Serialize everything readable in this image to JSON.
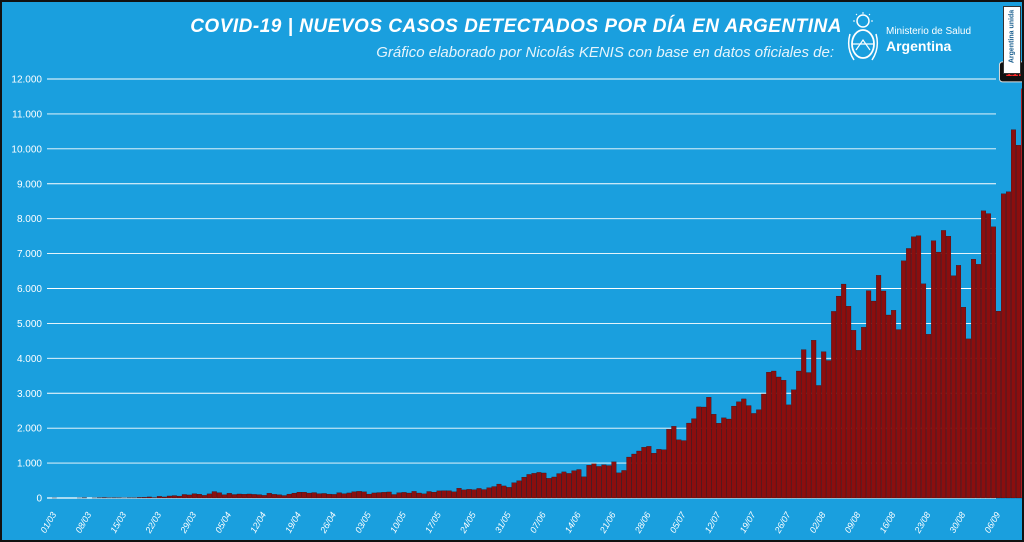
{
  "header": {
    "title": "COVID-19  |  NUEVOS CASOS DETECTADOS POR DÍA EN ARGENTINA",
    "subtitle": "Gráfico elaborado por Nicolás KENIS con base en datos oficiales de:",
    "logo_line1": "Ministerio de Salud",
    "logo_line2": "Argentina",
    "badge": "Argentina unida"
  },
  "colors": {
    "background": "#1a9fde",
    "bar": "#8b0e0e",
    "bar_peak": "#e81d1d",
    "peak_label_bg": "#111111",
    "peak_label": "#ff2a2a"
  },
  "chart_data": {
    "type": "bar",
    "title": "COVID-19  |  NUEVOS CASOS DETECTADOS POR DÍA EN ARGENTINA",
    "xlabel": "",
    "ylabel": "",
    "ylim": [
      0,
      12000
    ],
    "yticks": [
      0,
      1000,
      2000,
      3000,
      4000,
      5000,
      6000,
      7000,
      8000,
      9000,
      10000,
      11000,
      12000
    ],
    "ytick_labels": [
      "0",
      "1.000",
      "2.000",
      "3.000",
      "4.000",
      "5.000",
      "6.000",
      "7.000",
      "8.000",
      "9.000",
      "10.000",
      "11.000",
      "12.000"
    ],
    "grid": true,
    "start_date": "2020-03-01",
    "xtick_labels": [
      "01/03",
      "08/03",
      "15/03",
      "22/03",
      "29/03",
      "05/04",
      "12/04",
      "19/04",
      "26/04",
      "03/05",
      "10/05",
      "17/05",
      "24/05",
      "31/05",
      "07/06",
      "14/06",
      "21/06",
      "28/06",
      "05/07",
      "12/07",
      "19/07",
      "26/07",
      "02/08",
      "09/08",
      "16/08",
      "23/08",
      "30/08",
      "06/09"
    ],
    "peak_label": "11.717",
    "values": [
      0,
      1,
      0,
      0,
      0,
      0,
      1,
      5,
      0,
      2,
      9,
      14,
      4,
      10,
      5,
      3,
      7,
      5,
      17,
      21,
      31,
      14,
      47,
      30,
      58,
      70,
      55,
      101,
      88,
      123,
      110,
      75,
      118,
      185,
      152,
      94,
      135,
      100,
      115,
      108,
      115,
      103,
      97,
      75,
      136,
      105,
      93,
      71,
      112,
      140,
      168,
      167,
      142,
      156,
      125,
      130,
      112,
      103,
      151,
      124,
      145,
      180,
      191,
      177,
      112,
      145,
      156,
      165,
      173,
      100,
      151,
      161,
      143,
      189,
      143,
      119,
      186,
      168,
      204,
      210,
      208,
      178,
      280,
      232,
      248,
      238,
      274,
      242,
      295,
      328,
      399,
      346,
      305,
      438,
      494,
      598,
      675,
      706,
      733,
      717,
      563,
      602,
      700,
      748,
      704,
      784,
      816,
      607,
      939,
      983,
      904,
      950,
      929,
      1035,
      720,
      789,
      1173,
      1260,
      1346,
      1453,
      1479,
      1284,
      1395,
      1384,
      1968,
      2054,
      1668,
      1645,
      2146,
      2272,
      2609,
      2606,
      2887,
      2400,
      2143,
      2295,
      2262,
      2632,
      2757,
      2838,
      2648,
      2422,
      2529,
      2979,
      3604,
      3637,
      3466,
      3373,
      2667,
      3099,
      3637,
      4250,
      3593,
      4518,
      3223,
      4190,
      3937,
      5344,
      5782,
      6127,
      5493,
      4803,
      4230,
      4890,
      5939,
      5641,
      6377,
      5929,
      5241,
      5376,
      4824,
      6792,
      7147,
      7482,
      7513,
      6134,
      4688,
      7369,
      7043,
      7663,
      7498,
      6365,
      6663,
      5465,
      4557,
      6840,
      6693,
      8225,
      8146,
      7767,
      5352,
      8713,
      8771,
      10550,
      10104,
      11717,
      9230,
      7187,
      9309,
      10504,
      10933
    ]
  }
}
